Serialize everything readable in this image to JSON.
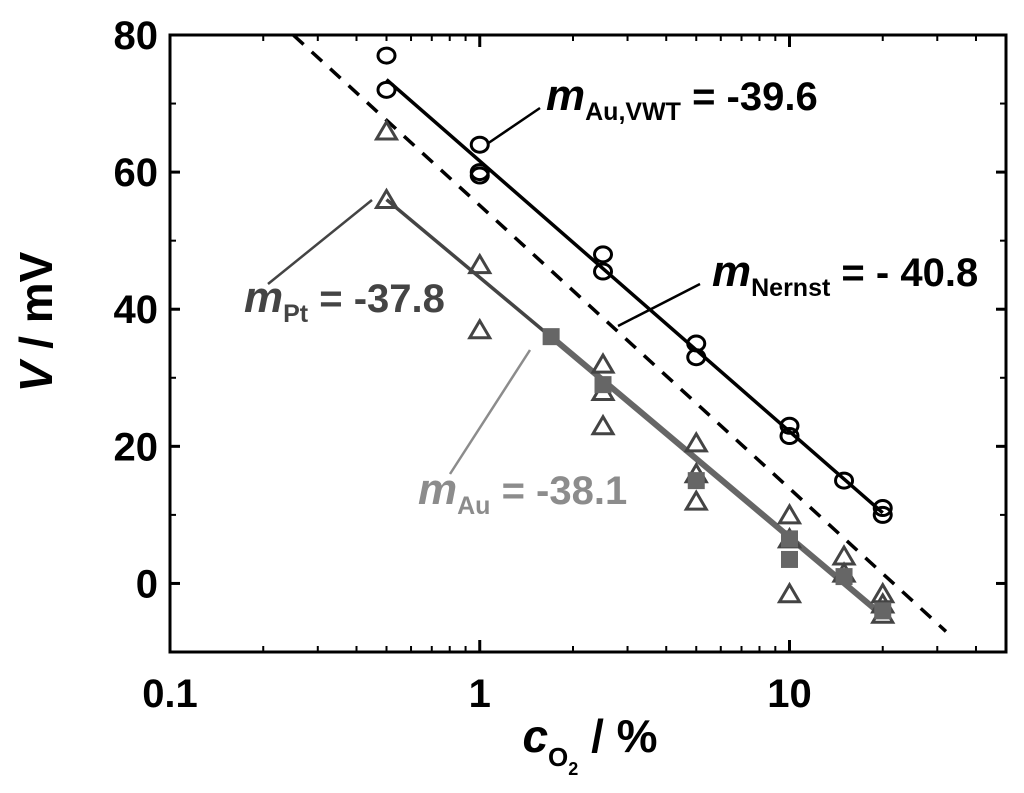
{
  "chart_data": {
    "type": "scatter",
    "x_scale": "log",
    "xlim": [
      0.1,
      50
    ],
    "ylim": [
      -10,
      80
    ],
    "x_ticks": [
      0.1,
      1,
      10
    ],
    "x_tick_labels": [
      "0.1",
      "1",
      "10"
    ],
    "y_ticks": [
      0,
      20,
      40,
      60,
      80
    ],
    "y_tick_labels": [
      "0",
      "20",
      "40",
      "60",
      "80"
    ],
    "xlabel": {
      "main": "c",
      "sub": "O",
      "subsub": "2",
      "unit": " / %"
    },
    "ylabel": {
      "main": "V",
      "unit": " / mV"
    },
    "grid": false,
    "colors": {
      "black": "#000000",
      "pt": "#444444",
      "au": "#7f7f7f",
      "square": "#666666"
    },
    "series": [
      {
        "key": "au_vwt",
        "marker": "circle",
        "color": "#000000",
        "points": [
          [
            0.5,
            77
          ],
          [
            0.5,
            72
          ],
          [
            1,
            64
          ],
          [
            1,
            60
          ],
          [
            1,
            59.5
          ],
          [
            2.5,
            48
          ],
          [
            2.5,
            45.5
          ],
          [
            5,
            35
          ],
          [
            5,
            33
          ],
          [
            10,
            23
          ],
          [
            10,
            21.5
          ],
          [
            15,
            15
          ],
          [
            20,
            11
          ],
          [
            20,
            10
          ]
        ],
        "fit": [
          [
            0.5,
            73.5
          ],
          [
            20,
            10.3
          ]
        ]
      },
      {
        "key": "pt",
        "marker": "triangle",
        "color": "#444444",
        "points": [
          [
            0.5,
            66
          ],
          [
            0.5,
            56
          ],
          [
            1,
            46.5
          ],
          [
            1,
            37
          ],
          [
            2.5,
            32
          ],
          [
            2.5,
            28
          ],
          [
            2.5,
            23
          ],
          [
            5,
            20.5
          ],
          [
            5,
            16
          ],
          [
            5,
            12
          ],
          [
            10,
            10
          ],
          [
            10,
            6.5
          ],
          [
            10,
            -1.5
          ],
          [
            15,
            4
          ],
          [
            15,
            1.5
          ],
          [
            20,
            -1.5
          ],
          [
            20,
            -3
          ],
          [
            20,
            -4.5
          ]
        ],
        "fit": [
          [
            0.5,
            56
          ],
          [
            20,
            -4.5
          ]
        ]
      },
      {
        "key": "au",
        "marker": "square",
        "color": "#666666",
        "points": [
          [
            1.7,
            36
          ],
          [
            2.5,
            29
          ],
          [
            5,
            15
          ],
          [
            10,
            6.5
          ],
          [
            10,
            3.5
          ],
          [
            15,
            1
          ],
          [
            20,
            -4
          ]
        ],
        "fit": [
          [
            1.7,
            36
          ],
          [
            20,
            -4.7
          ]
        ]
      }
    ],
    "nernst_line": [
      [
        0.25,
        80
      ],
      [
        32,
        -7
      ]
    ],
    "annotations": [
      {
        "key": "au_vwt",
        "m": "m",
        "sub": "Au,VWT",
        "text": " = -39.6",
        "color": "#000000"
      },
      {
        "key": "nernst",
        "m": "m",
        "sub": "Nernst",
        "text": " = - 40.8",
        "color": "#000000"
      },
      {
        "key": "pt",
        "m": "m",
        "sub": "Pt",
        "text": " = -37.8",
        "color": "#444444"
      },
      {
        "key": "au",
        "m": "m",
        "sub": "Au",
        "text": " = -38.1",
        "color": "#8c8c8c"
      }
    ]
  }
}
